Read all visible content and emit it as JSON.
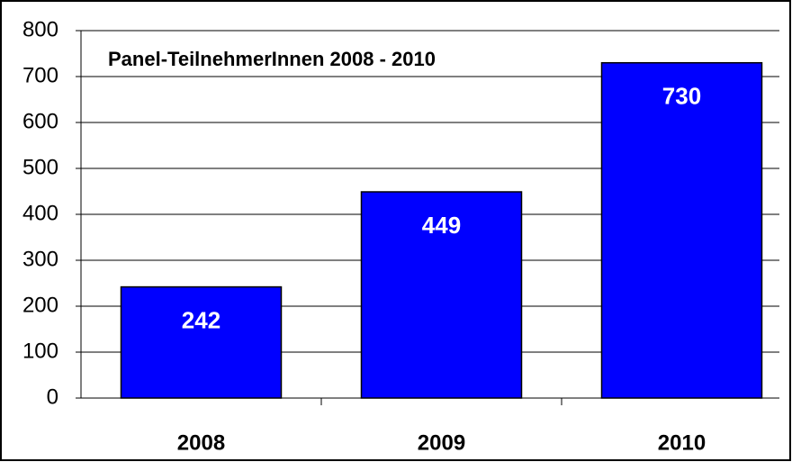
{
  "chart_data": {
    "type": "bar",
    "title": "Panel-TeilnehmerInnen 2008 - 2010",
    "categories": [
      "2008",
      "2009",
      "2010"
    ],
    "values": [
      242,
      449,
      730
    ],
    "color": "#0000ff",
    "ylim": [
      0,
      800
    ],
    "yticks": [
      0,
      100,
      200,
      300,
      400,
      500,
      600,
      700,
      800
    ],
    "grid": true
  }
}
